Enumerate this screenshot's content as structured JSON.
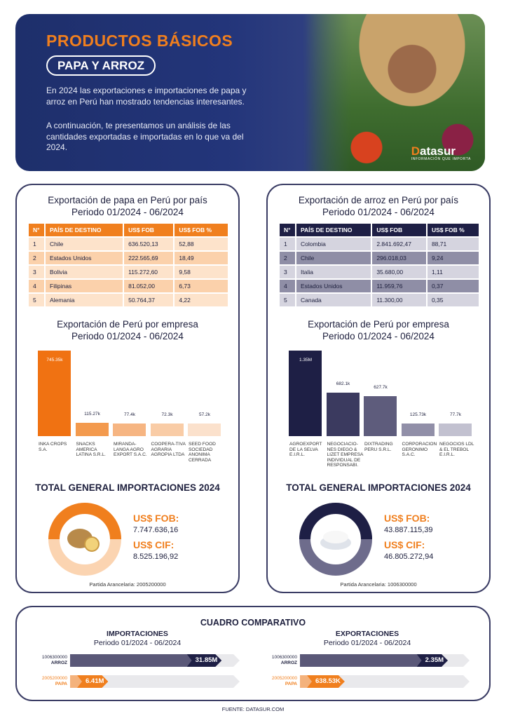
{
  "header": {
    "title": "PRODUCTOS BÁSICOS",
    "subtitle": "PAPA Y ARROZ",
    "paragraph1": "En 2024 las exportaciones e importaciones de papa y arroz en Perú han mostrado tendencias interesantes.",
    "paragraph2": "A continuación, te presentamos un análisis de las cantidades exportadas e importadas en lo que va del 2024.",
    "logo_main_a": "D",
    "logo_main_b": "atasur",
    "logo_tag": "INFORMACIÓN QUE IMPORTA"
  },
  "colors": {
    "papa": "#f07f1e",
    "arroz": "#1e1f45",
    "navy": "#1d1f3d"
  },
  "papa": {
    "table_title": "Exportación de papa en Perú por país",
    "period": "Periodo 01/2024 - 06/2024",
    "headers": [
      "N°",
      "PAÍS DE DESTINO",
      "US$ FOB",
      "US$ FOB %"
    ],
    "rows": [
      [
        "1",
        "Chile",
        "636.520,13",
        "52,88"
      ],
      [
        "2",
        "Estados Unidos",
        "222.565,69",
        "18,49"
      ],
      [
        "3",
        "Bolivia",
        "115.272,60",
        "9,58"
      ],
      [
        "4",
        "Filipinas",
        "81.052,00",
        "6,73"
      ],
      [
        "5",
        "Alemania",
        "50.764,37",
        "4,22"
      ]
    ],
    "company_title": "Exportación de Perú por empresa",
    "total_title": "TOTAL GENERAL IMPORTACIONES 2024",
    "fob_label": "US$ FOB:",
    "fob_value": "7.747.636,16",
    "cif_label": "US$ CIF:",
    "cif_value": "8.525.196,92",
    "partida": "Partida Arancelaria: 2005200000"
  },
  "arroz": {
    "table_title": "Exportación de arroz en Perú por país",
    "period": "Periodo 01/2024 - 06/2024",
    "headers": [
      "N°",
      "PAÍS DE DESTINO",
      "US$ FOB",
      "US$ FOB %"
    ],
    "rows": [
      [
        "1",
        "Colombia",
        "2.841.692,47",
        "88,71"
      ],
      [
        "2",
        "Chile",
        "296.018,03",
        "9,24"
      ],
      [
        "3",
        "Italia",
        "35.680,00",
        "1,11"
      ],
      [
        "4",
        "Estados Unidos",
        "11.959,76",
        "0,37"
      ],
      [
        "5",
        "Canada",
        "11.300,00",
        "0,35"
      ]
    ],
    "company_title": "Exportación de Perú por empresa",
    "total_title": "TOTAL GENERAL IMPORTACIONES 2024",
    "fob_label": "US$ FOB:",
    "fob_value": "43.887.115,39",
    "cif_label": "US$ CIF:",
    "cif_value": "46.805.272,94",
    "partida": "Partida Arancelaria: 1006300000"
  },
  "chart_data": [
    {
      "type": "bar",
      "categories": [
        "INKA CROPS S.A.",
        "SNACKS AMERICA LATINA S.R.L.",
        "MIRANDA-LANGA AGRO EXPORT S.A.C.",
        "COOPERA-TIVA AGRARIA AGROPIA LTDA",
        "SEED FOOD SOCIEDAD ANONIMA CERRADA"
      ],
      "values": [
        745350,
        115270,
        77400,
        72300,
        57200
      ],
      "data_labels": [
        "745.35k",
        "115.27k",
        "77.4k",
        "72.3k",
        "57.2k"
      ],
      "colors": [
        "#f07212",
        "#f39a4e",
        "#f6b582",
        "#f9cca6",
        "#fbe1cc"
      ],
      "title": "Exportación de Perú por empresa",
      "subtitle": "Periodo 01/2024 - 06/2024"
    },
    {
      "type": "bar",
      "categories": [
        "AGROEXPORT DE LA SELVA E.I.R.L.",
        "NEGOCIACIO-NES DIEGO & LIZET EMPRESA INDIVIDUAL DE RESPONSABI.",
        "DIXTRADING PERU S.R.L.",
        "CORPORACION GERONIMO S.A.C.",
        "NEGOCIOS LDL & EL TREBOL E.I.R.L."
      ],
      "values": [
        1350000,
        682100,
        627700,
        125730,
        77700
      ],
      "data_labels": [
        "1.35M",
        "682.1k",
        "627.7k",
        "125.73k",
        "77.7k"
      ],
      "colors": [
        "#1e1f45",
        "#3b3a5f",
        "#5e5c7c",
        "#918fa8",
        "#c2c1d0"
      ],
      "title": "Exportación de Perú por empresa",
      "subtitle": "Periodo 01/2024 - 06/2024"
    },
    {
      "type": "bar",
      "title": "IMPORTACIONES",
      "subtitle": "Periodo 01/2024 - 06/2024",
      "categories": [
        "1006300000 ARROZ",
        "2005200000 PAPA"
      ],
      "values": [
        31850000,
        6410000
      ],
      "data_labels": [
        "31.85M",
        "6.41M"
      ]
    },
    {
      "type": "bar",
      "title": "EXPORTACIONES",
      "subtitle": "Periodo 01/2024 - 06/2024",
      "categories": [
        "1006300000 ARROZ",
        "2005200000 PAPA"
      ],
      "values": [
        2350000,
        638530
      ],
      "data_labels": [
        "2.35M",
        "638.53K"
      ]
    }
  ],
  "comparativo": {
    "title": "CUADRO COMPARATIVO",
    "imp_title": "IMPORTACIONES",
    "exp_title": "EXPORTACIONES",
    "period": "Periodo 01/2024 - 06/2024",
    "arroz_code": "1006300000",
    "arroz_name": "ARROZ",
    "papa_code": "2005200000",
    "papa_name": "PAPA"
  },
  "footer": "FUENTE: DATASUR.COM"
}
